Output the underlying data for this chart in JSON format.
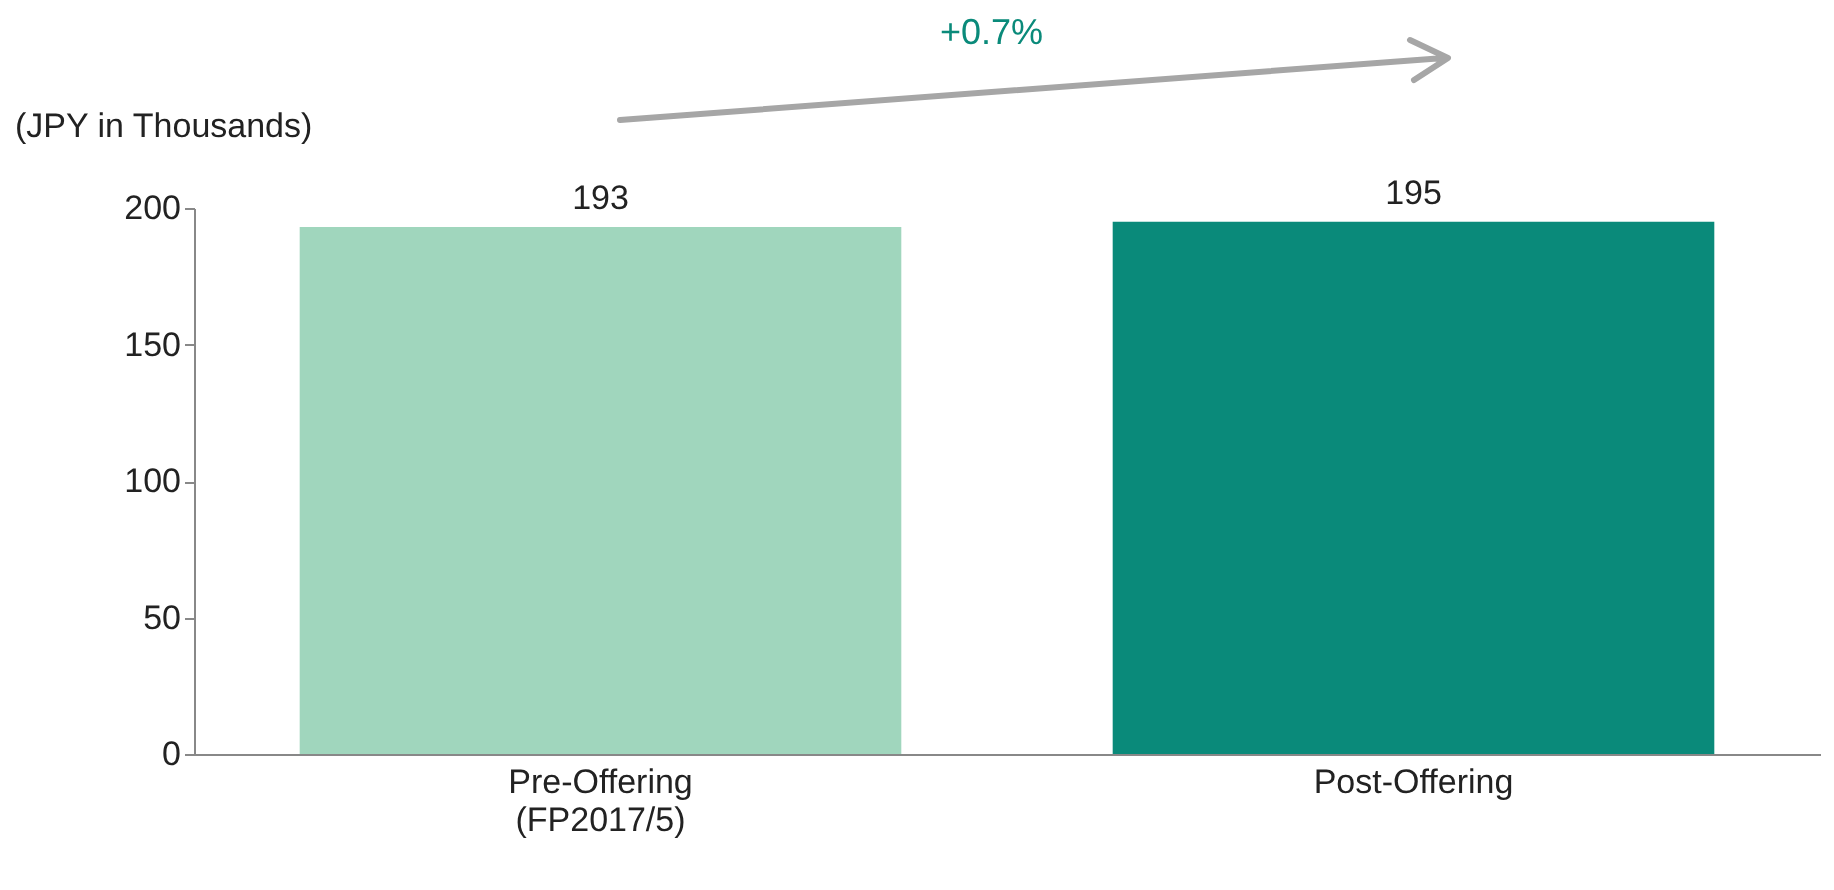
{
  "chart_data": {
    "type": "bar",
    "categories": [
      "Pre-Offering\n(FP2017/5)",
      "Post-Offering"
    ],
    "values": [
      193,
      195
    ],
    "colors": [
      "#a0d6bd",
      "#0a8a7a"
    ],
    "ylabel": "(JPY in Thousands)",
    "ylim": [
      0,
      200
    ],
    "yticks": [
      0,
      50,
      100,
      150,
      200
    ],
    "grid": false,
    "data_labels": true,
    "annotations": [
      "+0.7%"
    ]
  }
}
